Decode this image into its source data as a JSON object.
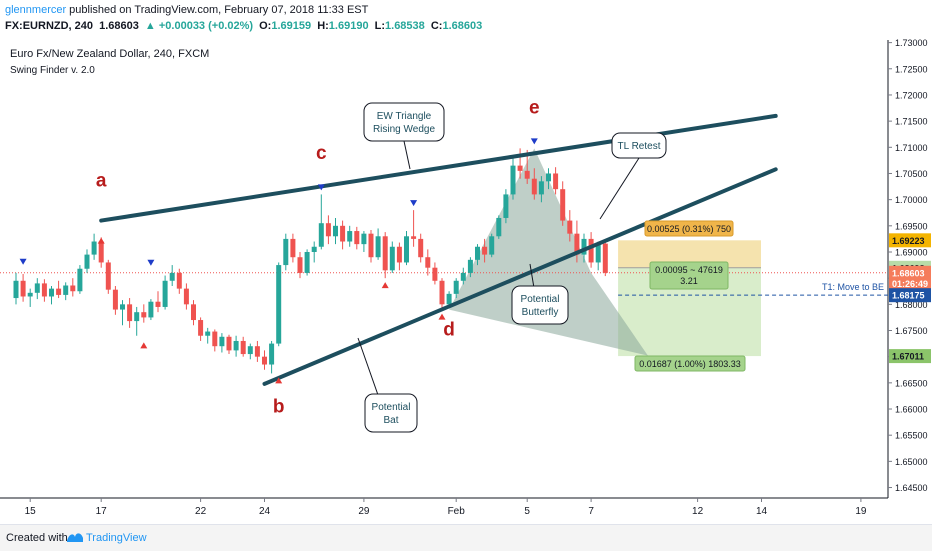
{
  "header": {
    "user": "glennmercer",
    "published": "published on TradingView.com, February 07, 2018 11:33 EST",
    "symbol": "FX:EURNZD, 240",
    "last": "1.68603",
    "change": "▲ +0.00033 (+0.02%)",
    "o_label": "O:",
    "o_value": "1.69159",
    "h_label": "H:",
    "h_value": "1.69190",
    "l_label": "L:",
    "l_value": "1.68538",
    "c_label": "C:",
    "c_value": "1.68603"
  },
  "chart_data": {
    "type": "candlestick",
    "legend": [
      "Euro Fx/New Zealand Dollar, 240, FXCM",
      "Swing Finder v. 2.0"
    ],
    "y_ticks": [
      1.73,
      1.725,
      1.72,
      1.715,
      1.71,
      1.705,
      1.7,
      1.695,
      1.69,
      1.685,
      1.68,
      1.675,
      1.67,
      1.665,
      1.66,
      1.655,
      1.65,
      1.645
    ],
    "ylim": [
      1.643,
      1.7305
    ],
    "x_ticks": [
      {
        "label": "15",
        "bar": 2
      },
      {
        "label": "17",
        "bar": 12
      },
      {
        "label": "22",
        "bar": 26
      },
      {
        "label": "24",
        "bar": 35
      },
      {
        "label": "29",
        "bar": 49
      },
      {
        "label": "Feb",
        "bar": 62
      },
      {
        "label": "5",
        "bar": 72
      },
      {
        "label": "7",
        "bar": 81
      },
      {
        "label": "12",
        "bar": 96
      },
      {
        "label": "14",
        "bar": 105
      },
      {
        "label": "19",
        "bar": 119
      }
    ],
    "candles": [
      [
        1.6812,
        1.686,
        1.68,
        1.6845
      ],
      [
        1.6845,
        1.6858,
        1.6805,
        1.6815
      ],
      [
        1.6815,
        1.683,
        1.6795,
        1.6822
      ],
      [
        1.6822,
        1.685,
        1.681,
        1.684
      ],
      [
        1.684,
        1.6848,
        1.6805,
        1.6815
      ],
      [
        1.6815,
        1.6835,
        1.68,
        1.683
      ],
      [
        1.683,
        1.6845,
        1.6812,
        1.6818
      ],
      [
        1.6818,
        1.6842,
        1.6808,
        1.6836
      ],
      [
        1.6836,
        1.685,
        1.6815,
        1.6825
      ],
      [
        1.6825,
        1.6875,
        1.682,
        1.6868
      ],
      [
        1.6868,
        1.6905,
        1.686,
        1.6895
      ],
      [
        1.6895,
        1.6935,
        1.6885,
        1.692
      ],
      [
        1.692,
        1.6928,
        1.687,
        1.688
      ],
      [
        1.688,
        1.6885,
        1.682,
        1.6828
      ],
      [
        1.6828,
        1.6835,
        1.678,
        1.679
      ],
      [
        1.679,
        1.6808,
        1.676,
        1.68
      ],
      [
        1.68,
        1.6812,
        1.6755,
        1.6768
      ],
      [
        1.6768,
        1.6795,
        1.674,
        1.6785
      ],
      [
        1.6785,
        1.68,
        1.6765,
        1.6775
      ],
      [
        1.6775,
        1.681,
        1.677,
        1.6805
      ],
      [
        1.6805,
        1.6825,
        1.6785,
        1.6795
      ],
      [
        1.6795,
        1.6855,
        1.679,
        1.6845
      ],
      [
        1.6845,
        1.6875,
        1.6835,
        1.686
      ],
      [
        1.686,
        1.6868,
        1.682,
        1.683
      ],
      [
        1.683,
        1.684,
        1.679,
        1.68
      ],
      [
        1.68,
        1.6808,
        1.676,
        1.677
      ],
      [
        1.677,
        1.6775,
        1.673,
        1.674
      ],
      [
        1.674,
        1.6755,
        1.6725,
        1.6748
      ],
      [
        1.6748,
        1.6752,
        1.671,
        1.672
      ],
      [
        1.672,
        1.6745,
        1.6708,
        1.6738
      ],
      [
        1.6738,
        1.6742,
        1.6705,
        1.6712
      ],
      [
        1.6712,
        1.674,
        1.67,
        1.673
      ],
      [
        1.673,
        1.6738,
        1.67,
        1.6705
      ],
      [
        1.6705,
        1.6725,
        1.6695,
        1.672
      ],
      [
        1.672,
        1.673,
        1.669,
        1.67
      ],
      [
        1.67,
        1.6712,
        1.6675,
        1.6685
      ],
      [
        1.6685,
        1.673,
        1.6668,
        1.6725
      ],
      [
        1.6725,
        1.688,
        1.672,
        1.6875
      ],
      [
        1.6875,
        1.6935,
        1.6865,
        1.6925
      ],
      [
        1.6925,
        1.6935,
        1.688,
        1.689
      ],
      [
        1.689,
        1.69,
        1.685,
        1.686
      ],
      [
        1.686,
        1.6905,
        1.6855,
        1.69
      ],
      [
        1.69,
        1.692,
        1.688,
        1.691
      ],
      [
        1.691,
        1.701,
        1.6905,
        1.6955
      ],
      [
        1.6955,
        1.697,
        1.6915,
        1.693
      ],
      [
        1.693,
        1.6965,
        1.6915,
        1.695
      ],
      [
        1.695,
        1.696,
        1.6905,
        1.692
      ],
      [
        1.692,
        1.695,
        1.691,
        1.694
      ],
      [
        1.694,
        1.6948,
        1.6905,
        1.6915
      ],
      [
        1.6915,
        1.694,
        1.69,
        1.6935
      ],
      [
        1.6935,
        1.6942,
        1.688,
        1.689
      ],
      [
        1.689,
        1.6945,
        1.6885,
        1.693
      ],
      [
        1.693,
        1.6938,
        1.685,
        1.6865
      ],
      [
        1.6865,
        1.692,
        1.686,
        1.691
      ],
      [
        1.691,
        1.6918,
        1.6865,
        1.688
      ],
      [
        1.688,
        1.694,
        1.6875,
        1.693
      ],
      [
        1.693,
        1.698,
        1.691,
        1.6925
      ],
      [
        1.6925,
        1.6935,
        1.688,
        1.689
      ],
      [
        1.689,
        1.6905,
        1.6855,
        1.687
      ],
      [
        1.687,
        1.688,
        1.6838,
        1.6845
      ],
      [
        1.6845,
        1.685,
        1.679,
        1.68
      ],
      [
        1.68,
        1.6825,
        1.6792,
        1.682
      ],
      [
        1.682,
        1.685,
        1.6812,
        1.6845
      ],
      [
        1.6845,
        1.687,
        1.6838,
        1.686
      ],
      [
        1.686,
        1.689,
        1.6852,
        1.6885
      ],
      [
        1.6885,
        1.6915,
        1.6875,
        1.691
      ],
      [
        1.691,
        1.6925,
        1.688,
        1.6895
      ],
      [
        1.6895,
        1.6935,
        1.689,
        1.693
      ],
      [
        1.693,
        1.697,
        1.6925,
        1.6965
      ],
      [
        1.6965,
        1.702,
        1.6955,
        1.701
      ],
      [
        1.701,
        1.708,
        1.7,
        1.7065
      ],
      [
        1.7065,
        1.7098,
        1.704,
        1.7055
      ],
      [
        1.7055,
        1.7095,
        1.703,
        1.704
      ],
      [
        1.704,
        1.706,
        1.7,
        1.701
      ],
      [
        1.701,
        1.7045,
        1.6995,
        1.7035
      ],
      [
        1.7035,
        1.706,
        1.702,
        1.705
      ],
      [
        1.705,
        1.7062,
        1.701,
        1.702
      ],
      [
        1.702,
        1.7035,
        1.695,
        1.696
      ],
      [
        1.696,
        1.698,
        1.692,
        1.6935
      ],
      [
        1.6935,
        1.696,
        1.688,
        1.6895
      ],
      [
        1.6895,
        1.6935,
        1.688,
        1.6925
      ],
      [
        1.6925,
        1.6938,
        1.687,
        1.688
      ],
      [
        1.688,
        1.692,
        1.6865,
        1.6916
      ],
      [
        1.6916,
        1.6919,
        1.6854,
        1.686
      ]
    ],
    "swing_markers": [
      {
        "bar": 1,
        "dir": "up",
        "price": 1.6868
      },
      {
        "bar": 12,
        "dir": "down",
        "price": 1.6935
      },
      {
        "bar": 19,
        "dir": "up",
        "price": 1.6866
      },
      {
        "bar": 18,
        "dir": "down",
        "price": 1.6735
      },
      {
        "bar": 37,
        "dir": "down",
        "price": 1.6668
      },
      {
        "bar": 43,
        "dir": "up",
        "price": 1.701
      },
      {
        "bar": 52,
        "dir": "down",
        "price": 1.685
      },
      {
        "bar": 56,
        "dir": "up",
        "price": 1.698
      },
      {
        "bar": 60,
        "dir": "down",
        "price": 1.679
      },
      {
        "bar": 73,
        "dir": "up",
        "price": 1.7098
      }
    ],
    "wave_labels": [
      {
        "text": "a",
        "bar": 12,
        "price": 1.7025
      },
      {
        "text": "b",
        "bar": 37,
        "price": 1.6593
      },
      {
        "text": "c",
        "bar": 43,
        "price": 1.7078
      },
      {
        "text": "d",
        "bar": 61,
        "price": 1.674
      },
      {
        "text": "e",
        "bar": 73,
        "price": 1.7165
      }
    ],
    "trendlines": [
      {
        "name": "upper",
        "from": [
          12,
          1.696
        ],
        "to": [
          107,
          1.716
        ]
      },
      {
        "name": "lower",
        "from": [
          35,
          1.6648
        ],
        "to": [
          107,
          1.7058
        ]
      }
    ],
    "patterns": [
      {
        "name": "Potential Bat",
        "points": [
          [
            37,
            1.6648
          ],
          [
            73,
            1.7098
          ],
          [
            61,
            1.679
          ],
          [
            73,
            1.7098
          ],
          [
            37,
            1.6648
          ]
        ]
      },
      {
        "name": "Potential Butterfly",
        "points": [
          [
            61,
            1.679
          ],
          [
            73,
            1.7098
          ],
          [
            81,
            1.686
          ],
          [
            89,
            1.6702
          ]
        ]
      }
    ],
    "callouts": [
      {
        "text": [
          "EW Triangle",
          "Rising Wedge"
        ]
      },
      {
        "text": [
          "TL Retest"
        ]
      },
      {
        "text": [
          "Potential",
          "Butterfly"
        ]
      },
      {
        "text": [
          "Potential",
          "Bat"
        ]
      }
    ],
    "position": {
      "entry": 1.68698,
      "stop": 1.69223,
      "target": 1.67011,
      "risk_label": "0.00525 (0.31%) 750",
      "mid_label_1": "0.00095 ~ 47619",
      "mid_label_2": "3.21",
      "reward_label": "0.01687 (1.00%) 1803.33"
    },
    "t1_line": {
      "price": 1.68175,
      "label": "T1:  Move to BE"
    },
    "last_price": 1.68603,
    "price_tags": [
      {
        "text": "1.69223",
        "price": 1.69223,
        "bg": "#f4b400",
        "fg": "#131722"
      },
      {
        "text": "1.68698",
        "price": 1.68698,
        "bg": "#b8dca8",
        "fg": "#131722"
      },
      {
        "text": "1.68603",
        "price": 1.68603,
        "bg": "#f57c5b",
        "fg": "#ffffff"
      },
      {
        "text": "01:26:49",
        "price": 1.684,
        "bg": "#f57c5b",
        "fg": "#ffffff"
      },
      {
        "text": "1.68175",
        "price": 1.68175,
        "bg": "#1e53a4",
        "fg": "#ffffff"
      },
      {
        "text": "1.67011",
        "price": 1.67011,
        "bg": "#8bc46a",
        "fg": "#131722"
      }
    ]
  },
  "footer": {
    "created": "Created with",
    "brand": "TradingView"
  },
  "colors": {
    "up": "#26a69a",
    "down": "#ef5350",
    "trendline": "#1d4e5e",
    "pattern": "#8aa89a",
    "risk": "#f3dea0",
    "reward": "#cfe8be"
  }
}
